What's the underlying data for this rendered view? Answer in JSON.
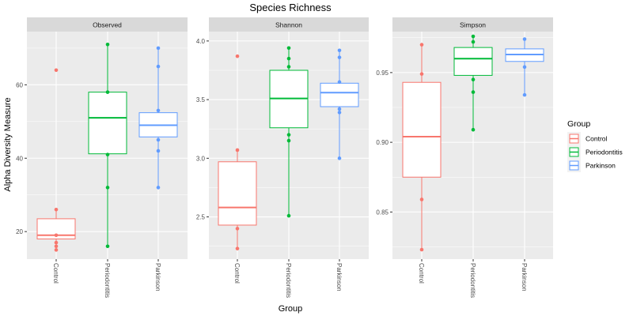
{
  "chart_data": {
    "type": "box",
    "title": "Species Richness",
    "xlabel": "Group",
    "ylabel": "Alpha Diversity Measure",
    "categories": [
      "Control",
      "Periodontitis",
      "Parkinson"
    ],
    "legend": {
      "title": "Group",
      "position": "right",
      "entries": [
        "Control",
        "Periodontitis",
        "Parkinson"
      ]
    },
    "colors": {
      "Control": "#F8766D",
      "Periodontitis": "#00BA38",
      "Parkinson": "#619CFF",
      "panel_background": "#EBEBEB",
      "strip_background": "#D9D9D9",
      "grid": "#FFFFFF"
    },
    "grid": true,
    "facets": [
      {
        "name": "Observed",
        "ylim": [
          12.5,
          74.5
        ],
        "ticks": [
          20,
          40,
          60
        ],
        "tick_labels": [
          "20",
          "40",
          "60"
        ],
        "groups": [
          {
            "name": "Control",
            "min": 15,
            "q1": 18,
            "median": 19,
            "q3": 23.5,
            "max": 26,
            "points": [
              64,
              26,
              17,
              16,
              15,
              19
            ]
          },
          {
            "name": "Periodontitis",
            "min": 16,
            "q1": 41.2,
            "median": 51,
            "q3": 58,
            "max": 71,
            "points": [
              71,
              58,
              41,
              32,
              16
            ]
          },
          {
            "name": "Parkinson",
            "min": 32,
            "q1": 45.8,
            "median": 49,
            "q3": 52.4,
            "max": 70,
            "points": [
              70,
              65,
              53,
              45,
              42,
              32
            ]
          }
        ]
      },
      {
        "name": "Shannon",
        "ylim": [
          2.14,
          4.08
        ],
        "ticks": [
          2.5,
          3.0,
          3.5,
          4.0
        ],
        "tick_labels": [
          "2.5",
          "3.0",
          "3.5",
          "4.0"
        ],
        "groups": [
          {
            "name": "Control",
            "min": 2.23,
            "q1": 2.43,
            "median": 2.58,
            "q3": 2.97,
            "max": 3.07,
            "points": [
              3.87,
              3.07,
              2.4,
              2.23
            ]
          },
          {
            "name": "Periodontitis",
            "min": 2.51,
            "q1": 3.26,
            "median": 3.51,
            "q3": 3.75,
            "max": 3.94,
            "points": [
              3.94,
              3.85,
              3.78,
              3.2,
              3.15,
              2.51
            ]
          },
          {
            "name": "Parkinson",
            "min": 3.0,
            "q1": 3.44,
            "median": 3.56,
            "q3": 3.64,
            "max": 3.92,
            "points": [
              3.92,
              3.86,
              3.65,
              3.42,
              3.39,
              3.0
            ]
          }
        ]
      },
      {
        "name": "Simpson",
        "ylim": [
          0.8162,
          0.9794
        ],
        "ticks": [
          0.85,
          0.9,
          0.95
        ],
        "tick_labels": [
          "0.85",
          "0.90",
          "0.95"
        ],
        "groups": [
          {
            "name": "Control",
            "min": 0.823,
            "q1": 0.875,
            "median": 0.904,
            "q3": 0.943,
            "max": 0.97,
            "points": [
              0.97,
              0.949,
              0.859,
              0.823
            ]
          },
          {
            "name": "Periodontitis",
            "min": 0.909,
            "q1": 0.948,
            "median": 0.96,
            "q3": 0.968,
            "max": 0.976,
            "points": [
              0.976,
              0.972,
              0.945,
              0.936,
              0.909
            ]
          },
          {
            "name": "Parkinson",
            "min": 0.934,
            "q1": 0.958,
            "median": 0.963,
            "q3": 0.967,
            "max": 0.974,
            "points": [
              0.974,
              0.954,
              0.934
            ]
          }
        ]
      }
    ]
  }
}
